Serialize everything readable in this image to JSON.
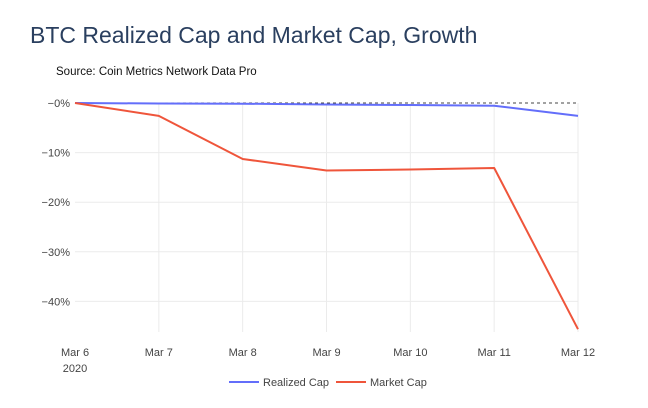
{
  "chart_data": {
    "type": "line",
    "title": "BTC Realized Cap and Market Cap, Growth",
    "subtitle": "Source: Coin Metrics Network Data Pro",
    "xlabel": "",
    "ylabel": "",
    "categories": [
      "Mar 6",
      "Mar 7",
      "Mar 8",
      "Mar 9",
      "Mar 10",
      "Mar 11",
      "Mar 12"
    ],
    "x_year_label": "2020",
    "y_ticks": [
      0,
      -10,
      -20,
      -30,
      -40
    ],
    "y_tick_labels": [
      "−0%",
      "−10%",
      "−20%",
      "−30%",
      "−40%"
    ],
    "ylim": [
      -46,
      0
    ],
    "grid": true,
    "legend_position": "bottom-center",
    "series": [
      {
        "name": "Realized Cap",
        "color": "#636efa",
        "values": [
          0,
          -0.1,
          -0.15,
          -0.3,
          -0.4,
          -0.55,
          -2.6
        ]
      },
      {
        "name": "Market Cap",
        "color": "#ef553b",
        "values": [
          0,
          -2.6,
          -11.3,
          -13.6,
          -13.4,
          -13.1,
          -45.6
        ]
      }
    ]
  }
}
